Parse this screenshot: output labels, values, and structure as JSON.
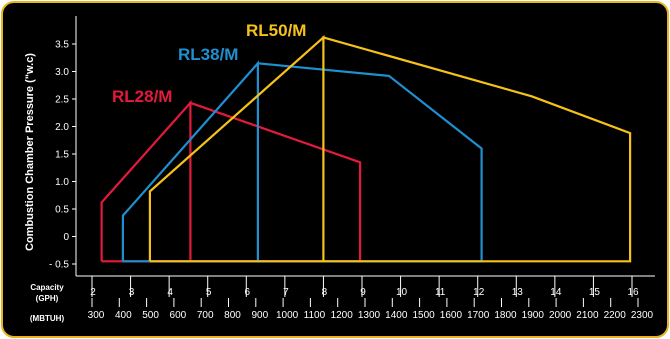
{
  "chart_data": {
    "type": "line",
    "title": "",
    "ylabel": "Combustion Chamber Pressure (\"w.c)",
    "ylim": [
      -0.5,
      3.75
    ],
    "yticks": [
      "- 0.5",
      "0",
      "0.5",
      "1.0",
      "1.5",
      "2.0",
      "2.5",
      "3.0",
      "3.5"
    ],
    "ytick_values": [
      -0.5,
      0,
      0.5,
      1.0,
      1.5,
      2.0,
      2.5,
      3.0,
      3.5
    ],
    "x_axes": [
      {
        "label_lines": [
          "Capacity",
          "(GPH)"
        ],
        "ticks": [
          "2",
          "3",
          "4",
          "5",
          "6",
          "7",
          "8",
          "9",
          "10",
          "11",
          "12",
          "13",
          "14",
          "15",
          "16"
        ],
        "tick_values": [
          2,
          3,
          4,
          5,
          6,
          7,
          8,
          9,
          10,
          11,
          12,
          13,
          14,
          15,
          16
        ]
      },
      {
        "label": "(MBTUH)",
        "ticks": [
          "300",
          "400",
          "500",
          "600",
          "700",
          "800",
          "900",
          "1000",
          "1100",
          "1200",
          "1300",
          "1400",
          "1500",
          "1600",
          "1700",
          "1800",
          "1900",
          "2000",
          "2100",
          "2200",
          "2300"
        ]
      }
    ],
    "xlim": [
      2,
      16.6
    ],
    "series": [
      {
        "name": "RL28/M",
        "color": "#e21b3c",
        "points": [
          [
            2.25,
            -0.45
          ],
          [
            2.25,
            0.62
          ],
          [
            4.55,
            2.43
          ],
          [
            4.55,
            -0.45
          ],
          [
            4.55,
            2.43
          ],
          [
            8.95,
            1.35
          ],
          [
            8.95,
            -0.45
          ],
          [
            2.25,
            -0.45
          ]
        ]
      },
      {
        "name": "RL38/M",
        "color": "#1f8fcf",
        "points": [
          [
            2.8,
            -0.45
          ],
          [
            2.8,
            0.38
          ],
          [
            6.3,
            3.15
          ],
          [
            6.3,
            -0.45
          ],
          [
            6.3,
            3.15
          ],
          [
            9.7,
            2.92
          ],
          [
            12.1,
            1.6
          ],
          [
            12.1,
            -0.45
          ],
          [
            2.8,
            -0.45
          ]
        ]
      },
      {
        "name": "RL50/M",
        "color": "#f6c21a",
        "points": [
          [
            3.5,
            -0.45
          ],
          [
            3.5,
            0.82
          ],
          [
            8.0,
            3.62
          ],
          [
            8.0,
            -0.45
          ],
          [
            8.0,
            3.62
          ],
          [
            13.4,
            2.55
          ],
          [
            15.95,
            1.88
          ],
          [
            15.95,
            -0.45
          ],
          [
            3.5,
            -0.45
          ]
        ]
      }
    ]
  }
}
